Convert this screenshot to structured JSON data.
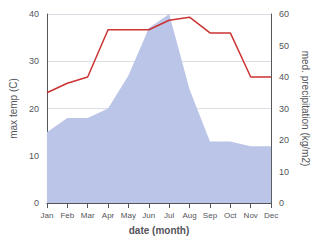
{
  "chart_data": {
    "type": "line",
    "xlabel": "date (month)",
    "ylabel": "max temp (C)",
    "y2label": "med. precipitation (kg/m2)",
    "categories": [
      "Jan",
      "Feb",
      "Mar",
      "Apr",
      "May",
      "Jun",
      "Jul",
      "Aug",
      "Sep",
      "Oct",
      "Nov",
      "Dec"
    ],
    "series": [
      {
        "type": "area",
        "color": "#bbc5e8",
        "values": [
          15,
          18,
          18,
          20,
          27,
          37,
          40,
          24,
          13,
          13,
          12,
          12
        ]
      },
      {
        "type": "line",
        "color": "#cc3333",
        "axis": "y2",
        "values": [
          35,
          38,
          40,
          55,
          55,
          55,
          58,
          59,
          54,
          54,
          40,
          40
        ]
      }
    ],
    "ylim": [
      0,
      40
    ],
    "yticks": [
      0,
      10,
      20,
      30,
      40
    ],
    "y2lim": [
      0,
      60
    ],
    "y2ticks": [
      0,
      10,
      20,
      30,
      40,
      50,
      60
    ],
    "grid": true
  }
}
